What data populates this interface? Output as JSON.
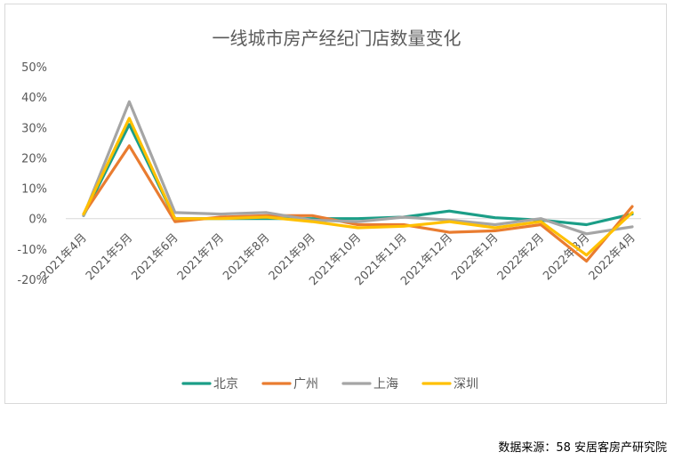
{
  "chart_data": {
    "type": "line",
    "title": "一线城市房产经纪门店数量变化",
    "categories": [
      "2021年4月",
      "2021年5月",
      "2021年6月",
      "2021年7月",
      "2021年8月",
      "2021年9月",
      "2021年10月",
      "2021年11月",
      "2021年12月",
      "2022年1月",
      "2022年2月",
      "2022年3月",
      "2022年4月"
    ],
    "y_ticks": [
      "50%",
      "40%",
      "30%",
      "20%",
      "10%",
      "0%",
      "-10%",
      "-20%"
    ],
    "ylim": [
      -20,
      50
    ],
    "grid": false,
    "legend_position": "bottom",
    "series": [
      {
        "name": "北京",
        "color": "#1b9e87",
        "values": [
          1,
          31,
          0,
          0,
          0,
          0,
          0,
          0.5,
          2.5,
          0.3,
          -0.5,
          -2,
          1.5
        ]
      },
      {
        "name": "广州",
        "color": "#e97c30",
        "values": [
          1.5,
          24,
          -1,
          0.5,
          1,
          1,
          -2,
          -2,
          -4.5,
          -4,
          -2,
          -14,
          4
        ]
      },
      {
        "name": "上海",
        "color": "#a5a5a5",
        "values": [
          1,
          38.5,
          2,
          1.5,
          2,
          -0.5,
          -1,
          0.5,
          -0.5,
          -2,
          0,
          -5,
          -2.7
        ]
      },
      {
        "name": "深圳",
        "color": "#ffc000",
        "values": [
          1.5,
          33,
          0,
          0,
          0.5,
          -1,
          -3,
          -2.5,
          -1,
          -3,
          -1,
          -12,
          2
        ]
      }
    ]
  },
  "source_text": "数据来源：58 安居客房产研究院"
}
